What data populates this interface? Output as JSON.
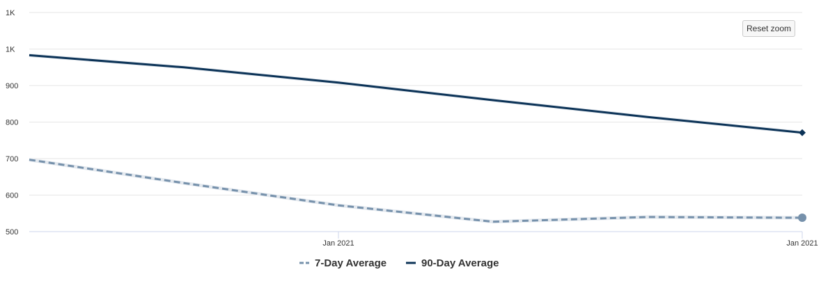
{
  "reset_zoom_label": "Reset zoom",
  "chart_data": {
    "type": "line",
    "y_tick_labels": [
      "500",
      "600",
      "700",
      "800",
      "900",
      "1K",
      "1K"
    ],
    "y_tick_values": [
      500,
      600,
      700,
      800,
      900,
      1000,
      1100
    ],
    "ylim": [
      500,
      1100
    ],
    "x_tick_labels": [
      {
        "label": "Jan 2021",
        "at": 2.0
      },
      {
        "label": "Jan 2021",
        "at": 5.0
      }
    ],
    "xlim": [
      0,
      5
    ],
    "grid": true,
    "legend_position": "bottom-center",
    "series": [
      {
        "name": "7-Day Average",
        "style": "dashed",
        "color": "#7691ab",
        "marker": "circle",
        "x": [
          0,
          1,
          2,
          3,
          4,
          5
        ],
        "values": [
          697,
          633,
          572,
          527,
          540,
          538
        ]
      },
      {
        "name": "90-Day Average",
        "style": "solid",
        "color": "#0c3357",
        "marker": "diamond",
        "x": [
          0,
          1,
          2,
          3,
          4,
          5
        ],
        "values": [
          983,
          950,
          908,
          860,
          814,
          771
        ]
      }
    ]
  }
}
